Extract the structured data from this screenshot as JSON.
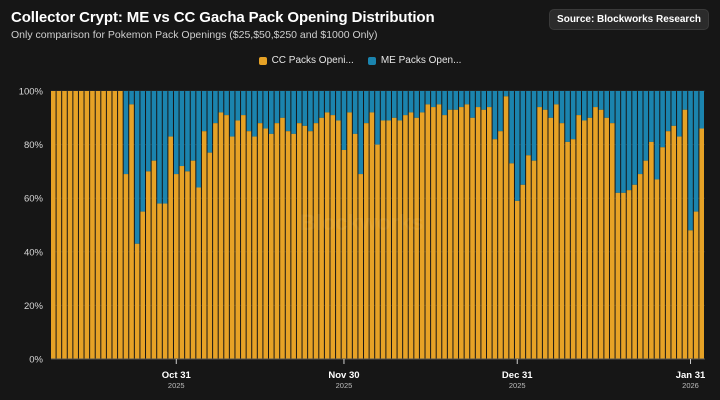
{
  "header": {
    "title": "Collector Crypt: ME vs CC Gacha Pack Opening Distribution",
    "subtitle": "Only comparison for Pokemon Pack Openings ($25,$50,$250 and $1000 Only)",
    "source": "Source: Blockworks Research",
    "watermark": "Blockworks"
  },
  "colors": {
    "cc": "#E6A226",
    "me": "#1B84AE",
    "background": "#161616"
  },
  "chart_data": {
    "type": "bar",
    "stacked": true,
    "title": "Collector Crypt: ME vs CC Gacha Pack Opening Distribution",
    "subtitle": "Only comparison for Pokemon Pack Openings ($25,$50,$250 and $1000 Only)",
    "legend": [
      {
        "name": "CC Packs Openi...",
        "color": "#E6A226"
      },
      {
        "name": "ME Packs Open...",
        "color": "#1B84AE"
      }
    ],
    "legend_position": "top-center",
    "ylim": [
      0,
      100
    ],
    "y_ticks": [
      0,
      20,
      40,
      60,
      80,
      100
    ],
    "y_tick_labels": [
      "0%",
      "20%",
      "40%",
      "60%",
      "80%",
      "100%"
    ],
    "x_ticks": [
      {
        "index": 22,
        "label": "Oct 31",
        "sublabel": "2025"
      },
      {
        "index": 52,
        "label": "Nov 30",
        "sublabel": "2025"
      },
      {
        "index": 83,
        "label": "Dec 31",
        "sublabel": "2025"
      },
      {
        "index": 114,
        "label": "Jan 31",
        "sublabel": "2026"
      }
    ],
    "series": [
      {
        "name": "CC Packs Openings",
        "values": [
          100,
          100,
          100,
          100,
          100,
          100,
          100,
          100,
          100,
          100,
          100,
          100,
          100,
          69,
          95,
          43,
          55,
          70,
          74,
          58,
          58,
          83,
          69,
          72,
          70,
          74,
          64,
          85,
          77,
          88,
          92,
          91,
          83,
          89,
          91,
          85,
          83,
          88,
          86,
          84,
          88,
          90,
          85,
          84,
          88,
          87,
          85,
          88,
          90,
          92,
          91,
          89,
          78,
          92,
          84,
          69,
          88,
          92,
          80,
          89,
          89,
          90,
          89,
          91,
          92,
          90,
          92,
          95,
          94,
          95,
          91,
          93,
          93,
          94,
          95,
          90,
          94,
          93,
          94,
          82,
          85,
          98,
          73,
          59,
          65,
          76,
          74,
          94,
          93,
          90,
          95,
          88,
          81,
          82,
          91,
          89,
          90,
          94,
          93,
          90,
          88,
          62,
          62,
          63,
          65,
          69,
          74,
          81,
          67,
          79,
          85,
          87,
          83,
          93,
          48,
          55,
          86
        ]
      },
      {
        "name": "ME Packs Openings",
        "values": [
          0,
          0,
          0,
          0,
          0,
          0,
          0,
          0,
          0,
          0,
          0,
          0,
          0,
          31,
          5,
          57,
          45,
          30,
          26,
          42,
          42,
          17,
          31,
          28,
          30,
          26,
          36,
          15,
          23,
          12,
          8,
          9,
          17,
          11,
          9,
          15,
          17,
          12,
          14,
          16,
          12,
          10,
          15,
          16,
          12,
          13,
          15,
          12,
          10,
          8,
          9,
          11,
          22,
          8,
          16,
          31,
          12,
          8,
          20,
          11,
          11,
          10,
          11,
          9,
          8,
          10,
          8,
          5,
          6,
          5,
          9,
          7,
          7,
          6,
          5,
          10,
          6,
          7,
          6,
          18,
          15,
          2,
          27,
          41,
          35,
          24,
          26,
          6,
          7,
          10,
          5,
          12,
          19,
          18,
          9,
          11,
          10,
          6,
          7,
          10,
          12,
          38,
          38,
          37,
          35,
          31,
          26,
          19,
          33,
          21,
          15,
          13,
          17,
          7,
          52,
          45,
          14
        ]
      }
    ]
  }
}
